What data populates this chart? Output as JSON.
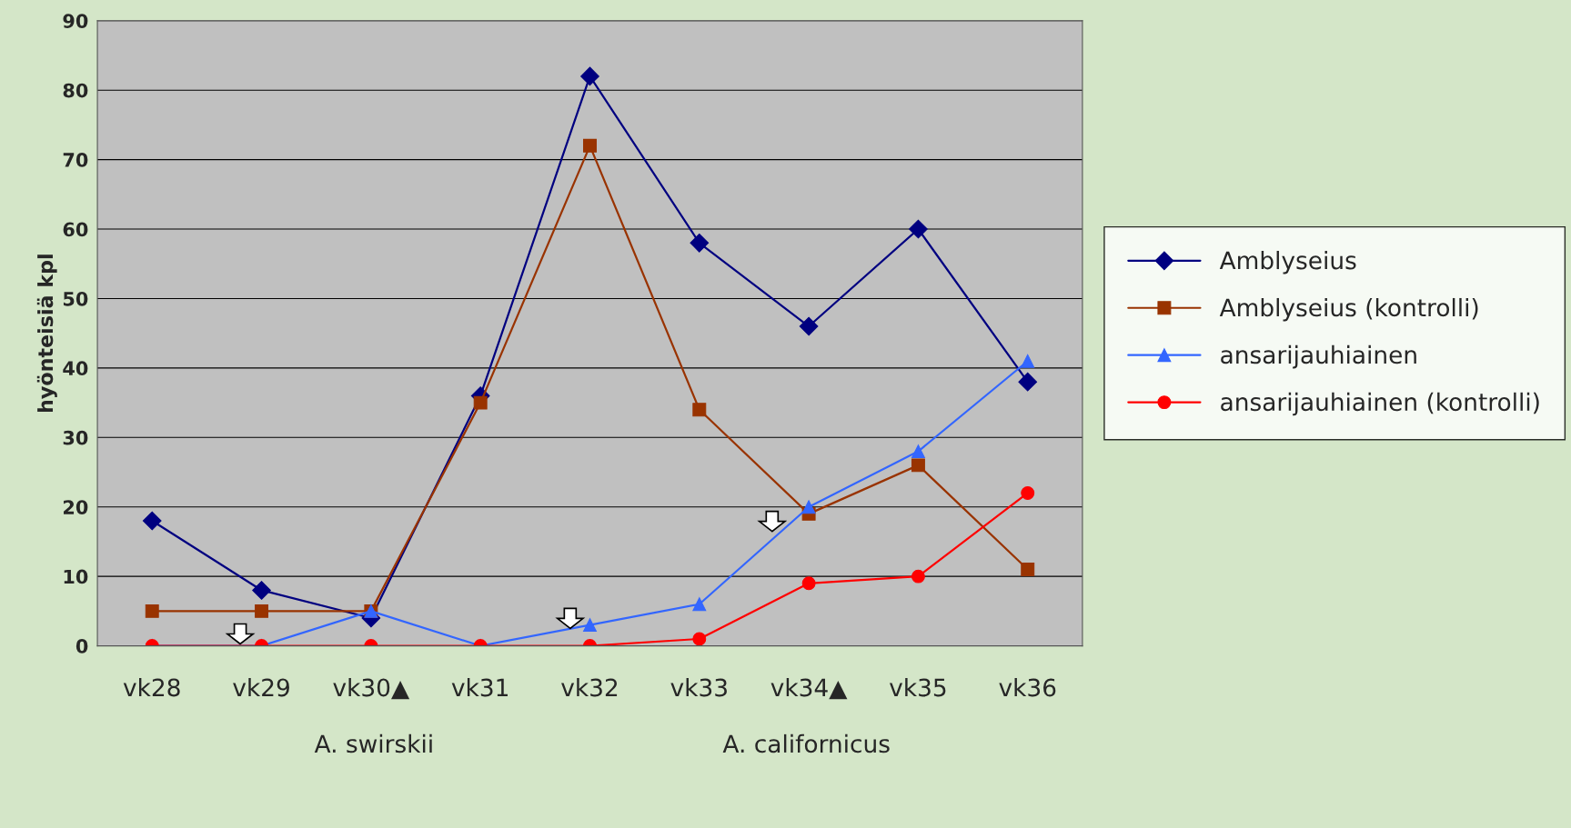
{
  "chart_data": {
    "type": "line",
    "ylabel": "hyönteisiä kpl",
    "categories": [
      "vk28",
      "vk29",
      "vk30▲",
      "vk31",
      "vk32",
      "vk33",
      "vk34▲",
      "vk35",
      "vk36"
    ],
    "series": [
      {
        "name": "Amblyseius",
        "color": "#000080",
        "marker": "diamond",
        "values": [
          18,
          8,
          4,
          36,
          82,
          58,
          46,
          60,
          38
        ]
      },
      {
        "name": "Amblyseius (kontrolli)",
        "color": "#993300",
        "marker": "square",
        "values": [
          5,
          5,
          5,
          35,
          72,
          34,
          19,
          26,
          11
        ]
      },
      {
        "name": "ansarijauhiainen",
        "color": "#3366ff",
        "marker": "triangle",
        "values": [
          0,
          0,
          5,
          0,
          3,
          6,
          20,
          28,
          41
        ]
      },
      {
        "name": "ansarijauhiainen (kontrolli)",
        "color": "#ff0000",
        "marker": "circle",
        "values": [
          0,
          0,
          0,
          0,
          0,
          1,
          9,
          10,
          22
        ]
      }
    ],
    "ylim": [
      0,
      90
    ],
    "yticks": [
      0,
      10,
      20,
      30,
      40,
      50,
      60,
      70,
      80,
      90
    ],
    "grid": "y",
    "legend": "right",
    "annotations": [
      "A. swirskii",
      "A. californicus"
    ]
  }
}
